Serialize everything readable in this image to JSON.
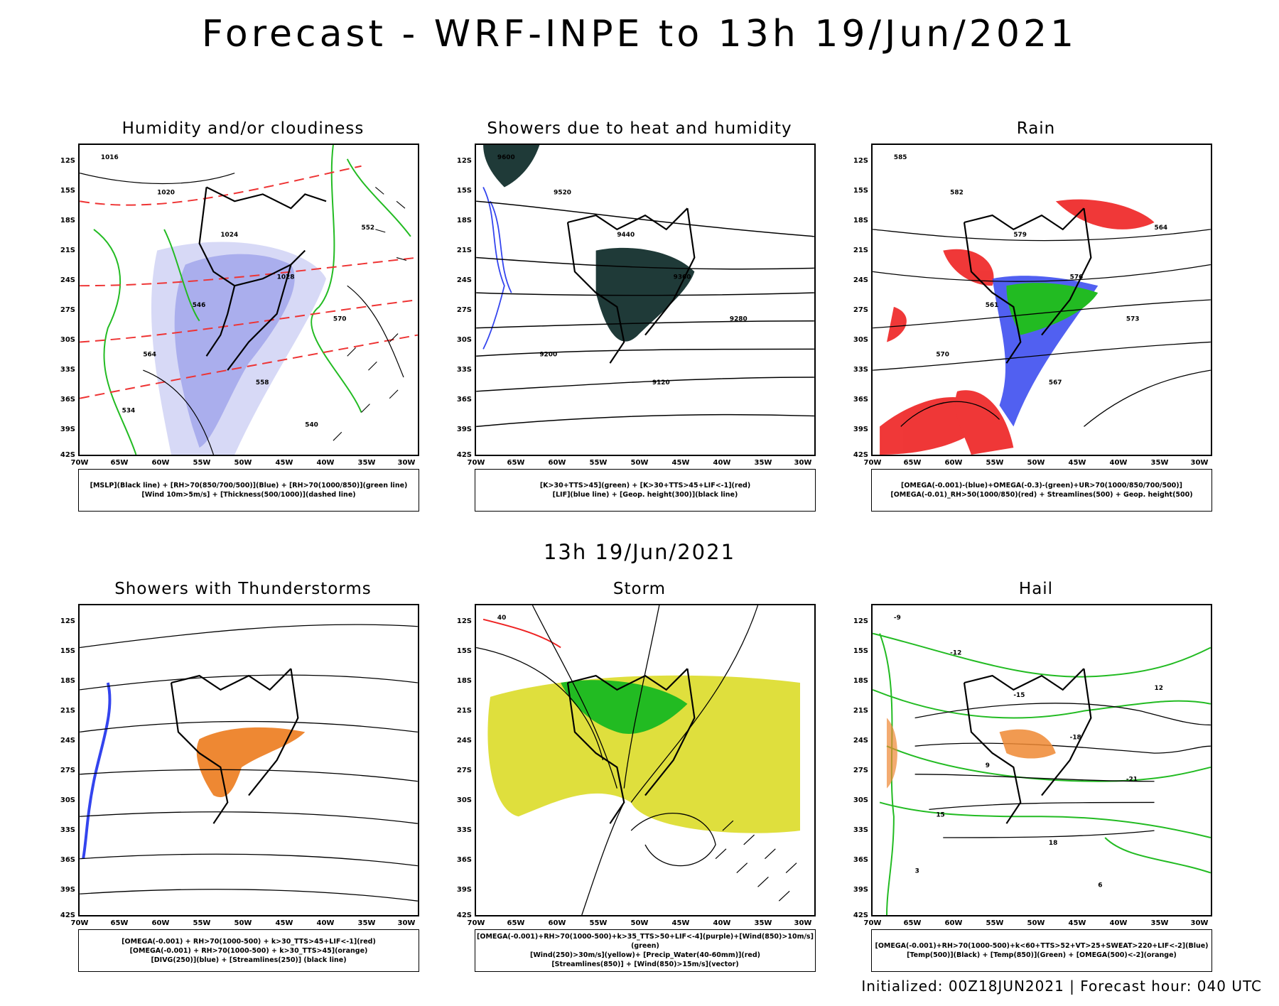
{
  "header": {
    "title": "Forecast - WRF-INPE to 13h 19/Jun/2021",
    "mid_title": "13h 19/Jun/2021"
  },
  "axes": {
    "lat_labels": [
      "12S",
      "15S",
      "18S",
      "21S",
      "24S",
      "27S",
      "30S",
      "33S",
      "36S",
      "39S",
      "42S"
    ],
    "lon_labels": [
      "70W",
      "65W",
      "60W",
      "55W",
      "50W",
      "45W",
      "40W",
      "35W",
      "30W"
    ]
  },
  "panels": [
    {
      "title": "Humidity and/or cloudiness",
      "legend": [
        "[MSLP](Black line) + [RH>70(850/700/500)](Blue) + [RH>70(1000/850)](green line)",
        "[Wind 10m>5m/s] + [Thickness(500/1000)](dashed line)"
      ],
      "contour_labels": [
        "1016",
        "1020",
        "1024",
        "1028",
        "570",
        "564",
        "558",
        "552",
        "546",
        "540",
        "534"
      ]
    },
    {
      "title": "Showers due to heat and humidity",
      "legend": [
        "[K>30+TTS>45](green) + [K>30+TTS>45+LIF<-1](red)",
        "[LIF](blue line) + [Geop. height(300)](black line)"
      ],
      "contour_labels": [
        "9600",
        "9520",
        "9440",
        "9360",
        "9280",
        "9200",
        "9120"
      ]
    },
    {
      "title": "Rain",
      "legend": [
        "[OMEGA(-0.001)-(blue)+OMEGA(-0.3)-(green)+UR>70(1000/850/700/500)]",
        "[OMEGA(-0.01)_RH>50(1000/850)(red) + Streamlines(500) + Geop. height(500)"
      ],
      "contour_labels": [
        "585",
        "582",
        "579",
        "576",
        "573",
        "570",
        "567",
        "564",
        "561"
      ]
    },
    {
      "title": "Showers with Thunderstorms",
      "legend": [
        "[OMEGA(-0.001) + RH>70(1000-500) + k>30_TTS>45+LIF<-1](red)",
        "[OMEGA(-0.001) + RH>70(1000-500) + k>30_TTS>45](orange)",
        "[DIVG(250)](blue) + [Streamlines(250)] (black line)"
      ],
      "contour_labels": []
    },
    {
      "title": "Storm",
      "legend": [
        "[OMEGA(-0.001)+RH>70(1000-500)+k>35_TTS>50+LIF<-4](purple)+[Wind(850)>10m/s](green)",
        "[Wind(250)>30m/s](yellow)+ [Precip_Water(40-60mm)](red)",
        "[Streamlines(850)] + [Wind(850)>15m/s](vector)"
      ],
      "contour_labels": [
        "40"
      ]
    },
    {
      "title": "Hail",
      "legend": [
        "[OMEGA(-0.001)+RH>70(1000-500)+k<60+TTS>52+VT>25+SWEAT>220+LIF<-2](Blue)",
        "[Temp(500)](Black) + [Temp(850)](Green) + [OMEGA(500)<-2](orange)"
      ],
      "contour_labels": [
        "-9",
        "-12",
        "-15",
        "-18",
        "-21",
        "15",
        "18",
        "12",
        "9",
        "6",
        "3"
      ]
    }
  ],
  "footer": "Initialized: 00Z18JUN2021 | Forecast hour: 040 UTC",
  "colors": {
    "green": "#22bb22",
    "blue": "#3344ee",
    "red": "#ee2222",
    "orange": "#ee8833",
    "yellow": "#dddd33",
    "darkgreen": "#1f3a38",
    "lightblue": "#a9aee8"
  }
}
